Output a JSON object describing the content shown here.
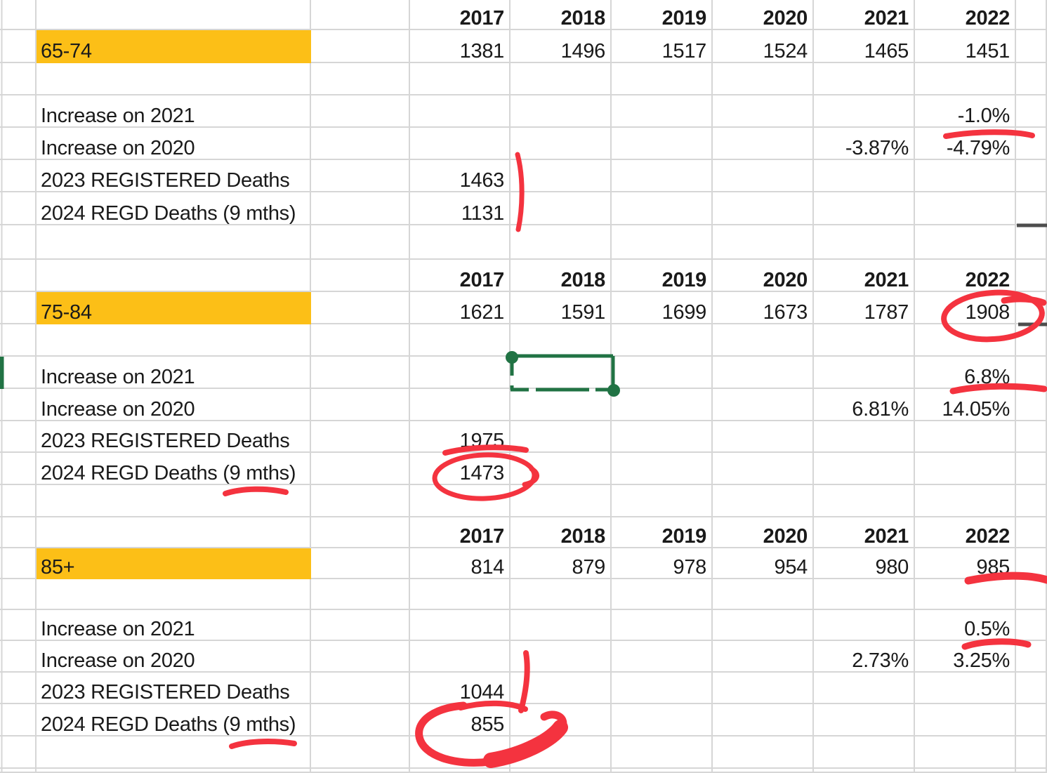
{
  "app": "spreadsheet",
  "colors": {
    "highlight": "#FCBF17",
    "marker": "#F4333F",
    "marquee": "#217344",
    "gridline": "#D6D6D6",
    "dark_line": "#4D4D4D",
    "text": "#1A1A1A",
    "background": "#FFFFFF"
  },
  "columns": {
    "years": [
      "2017",
      "2018",
      "2019",
      "2020",
      "2021",
      "2022"
    ]
  },
  "row_labels": [
    "Increase on 2021",
    "Increase on 2020",
    "2023 REGISTERED Deaths",
    "2024 REGD Deaths (9 mths)"
  ],
  "sections": [
    {
      "age_group": "65-74",
      "values": [
        "1381",
        "1496",
        "1517",
        "1524",
        "1465",
        "1451"
      ],
      "increase_on_2021_2022": "-1.0%",
      "increase_on_2020_2021": "-3.87%",
      "increase_on_2020_2022": "-4.79%",
      "registered_2023": "1463",
      "regd_2024_9mths": "1131"
    },
    {
      "age_group": "75-84",
      "values": [
        "1621",
        "1591",
        "1699",
        "1673",
        "1787",
        "1908"
      ],
      "increase_on_2021_2022": "6.8%",
      "increase_on_2020_2021": "6.81%",
      "increase_on_2020_2022": "14.05%",
      "registered_2023": "1975",
      "regd_2024_9mths": "1473"
    },
    {
      "age_group": "85+",
      "values": [
        "814",
        "879",
        "978",
        "954",
        "980",
        "985"
      ],
      "increase_on_2021_2022": "0.5%",
      "increase_on_2020_2021": "2.73%",
      "increase_on_2020_2022": "3.25%",
      "registered_2023": "1044",
      "regd_2024_9mths": "855"
    }
  ],
  "annotations": {
    "red_marker_targets": [
      "tick beside 1463/1131",
      "underline -1.0%",
      "circle 1908",
      "underline 6.8%",
      "underline 1975",
      "circle 1473",
      "underline under 2024 REGD label (75-84)",
      "underline 985",
      "underline 0.5%",
      "tick beside 1044",
      "underline 1044",
      "circle 855",
      "underline under 2024 REGD label (85+)"
    ],
    "selection": "green cell selection marquee with fill handles (2018 column, Increase on 2021 row of 75-84 block)",
    "row_indicator": "green bar at left edge of Increase on 2021 row (75-84 block)",
    "dark_edge_lines": 2
  }
}
